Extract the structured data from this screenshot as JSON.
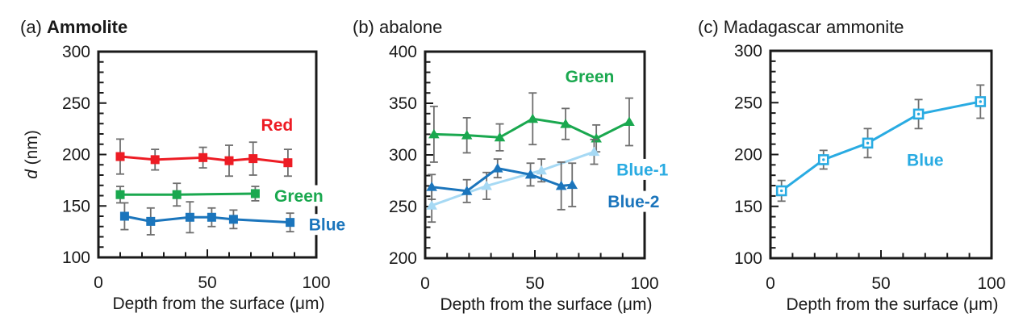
{
  "page": {
    "background": "#ffffff"
  },
  "chart_data": [
    {
      "id": "a",
      "type": "line",
      "title_prefix": "(a) ",
      "title": "Ammolite",
      "title_bold": true,
      "xlabel": "Depth from the surface (μm)",
      "ylabel": {
        "italic": "d",
        "rest": " (nm)"
      },
      "xlim": [
        0,
        100
      ],
      "ylim": [
        100,
        300
      ],
      "xticks": [
        0,
        50,
        100
      ],
      "yticks": [
        100,
        150,
        200,
        250,
        300
      ],
      "minor_tick_step": 10,
      "grid": false,
      "frame_color": "#1a1a1a",
      "error_bar_color": "#6e6e6e",
      "series": [
        {
          "name": "Red",
          "color": "#ed1c24",
          "marker": "square",
          "x": [
            10,
            26,
            48,
            60,
            71,
            87
          ],
          "y": [
            198,
            195,
            197,
            194,
            196,
            192
          ],
          "err": [
            17,
            10,
            10,
            15,
            16,
            13
          ]
        },
        {
          "name": "Green",
          "color": "#1aa84f",
          "marker": "square",
          "x": [
            10,
            36,
            72
          ],
          "y": [
            161,
            161,
            162
          ],
          "err": [
            8,
            11,
            7
          ]
        },
        {
          "name": "Blue",
          "color": "#1b75bc",
          "marker": "square",
          "x": [
            12,
            24,
            42,
            52,
            62,
            88
          ],
          "y": [
            140,
            135,
            139,
            139,
            137,
            134
          ],
          "err": [
            13,
            13,
            15,
            9,
            9,
            9
          ]
        }
      ],
      "annotations": [
        {
          "text": "Red",
          "color": "#ed1c24",
          "x": 82,
          "y": 229,
          "bg": false
        },
        {
          "text": "Green",
          "color": "#1aa84f",
          "x": 92,
          "y": 160,
          "bg": true
        },
        {
          "text": "Blue",
          "color": "#1b75bc",
          "x": 105,
          "y": 132,
          "bg": true
        }
      ]
    },
    {
      "id": "b",
      "type": "line",
      "title_prefix": "(b) ",
      "title": "abalone",
      "title_bold": false,
      "xlabel": "Depth from the surface (μm)",
      "ylabel": null,
      "xlim": [
        0,
        100
      ],
      "ylim": [
        200,
        400
      ],
      "xticks": [
        0,
        50,
        100
      ],
      "yticks": [
        200,
        250,
        300,
        350,
        400
      ],
      "minor_tick_step": 10,
      "grid": false,
      "frame_color": "#1a1a1a",
      "error_bar_color": "#6e6e6e",
      "series": [
        {
          "name": "Green",
          "color": "#1aa84f",
          "marker": "triangle",
          "x": [
            4,
            19,
            34,
            49,
            64,
            78,
            93
          ],
          "y": [
            320,
            319,
            317,
            335,
            330,
            316,
            332
          ],
          "err": [
            27,
            17,
            13,
            25,
            15,
            13,
            23
          ]
        },
        {
          "name": "Blue-1",
          "color": "#a6d9f4",
          "marker": "triangle",
          "x": [
            3,
            28,
            53,
            77
          ],
          "y": [
            251,
            270,
            285,
            303
          ],
          "err": [
            16,
            13,
            11,
            12
          ]
        },
        {
          "name": "Blue-2",
          "color": "#1b75bc",
          "marker": "triangle",
          "x": [
            3,
            19,
            33,
            48,
            62,
            67
          ],
          "y": [
            269,
            265,
            287,
            281,
            270,
            271
          ],
          "err": [
            12,
            11,
            9,
            11,
            23,
            21
          ]
        }
      ],
      "annotations": [
        {
          "text": "Green",
          "color": "#1aa84f",
          "x": 75,
          "y": 376,
          "bg": false
        },
        {
          "text": "Blue-1",
          "color": "#29abe2",
          "x": 99,
          "y": 286,
          "bg": true
        },
        {
          "text": "Blue-2",
          "color": "#1b75bc",
          "x": 95,
          "y": 255,
          "bg": true
        }
      ]
    },
    {
      "id": "c",
      "type": "line",
      "title_prefix": "(c) ",
      "title": "Madagascar ammonite",
      "title_bold": false,
      "xlabel": "Depth from the surface (μm)",
      "ylabel": null,
      "xlim": [
        0,
        100
      ],
      "ylim": [
        100,
        300
      ],
      "xticks": [
        0,
        50,
        100
      ],
      "yticks": [
        100,
        150,
        200,
        250,
        300
      ],
      "minor_tick_step": 10,
      "grid": false,
      "frame_color": "#1a1a1a",
      "error_bar_color": "#6e6e6e",
      "series": [
        {
          "name": "Blue",
          "color": "#29abe2",
          "marker": "open-square",
          "x": [
            5,
            24,
            44,
            67,
            95
          ],
          "y": [
            165,
            195,
            211,
            239,
            251
          ],
          "err": [
            10,
            9,
            14,
            14,
            16
          ]
        }
      ],
      "annotations": [
        {
          "text": "Blue",
          "color": "#29abe2",
          "x": 70,
          "y": 195,
          "bg": false
        }
      ]
    }
  ]
}
